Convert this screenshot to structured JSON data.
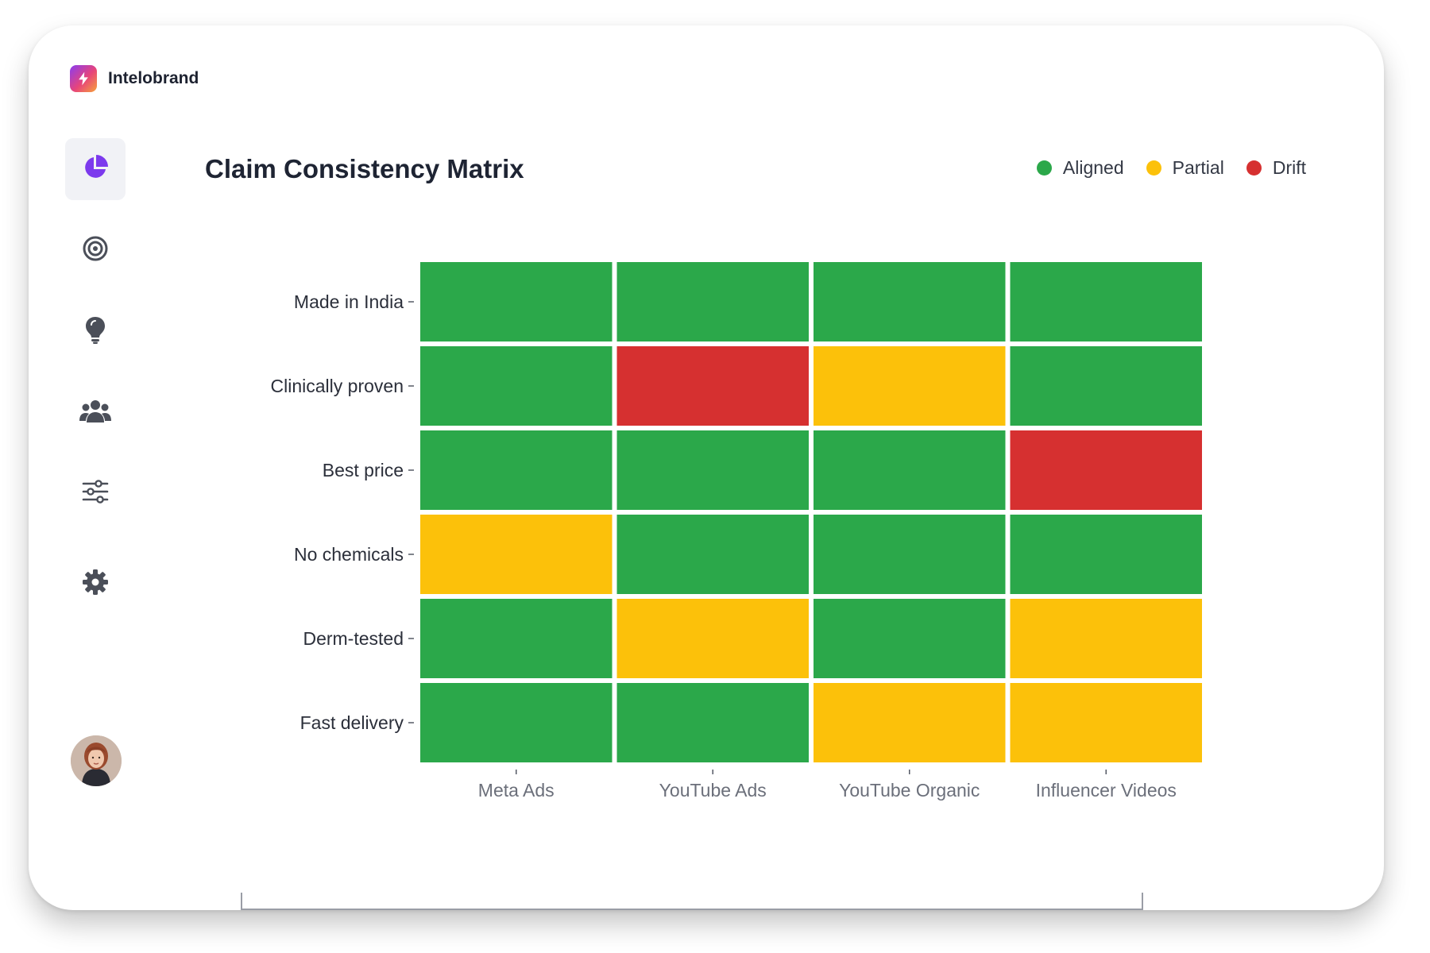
{
  "app": {
    "brand_name": "Intelobrand"
  },
  "sidebar": {
    "items": [
      {
        "icon": "pie-chart-icon",
        "active": true
      },
      {
        "icon": "target-icon",
        "active": false
      },
      {
        "icon": "lightbulb-icon",
        "active": false
      },
      {
        "icon": "users-icon",
        "active": false
      },
      {
        "icon": "sliders-icon",
        "active": false
      },
      {
        "icon": "gear-icon",
        "active": false
      }
    ],
    "avatar_icon": "user-avatar"
  },
  "colors": {
    "accent": "#7c3aed",
    "icon_gray": "#4b4f59",
    "aligned": "#2ba84a",
    "partial": "#fcc10a",
    "drift": "#d63030"
  },
  "chart_data": {
    "type": "heatmap",
    "title": "Claim Consistency Matrix",
    "legend": [
      {
        "label": "Aligned",
        "status": "aligned",
        "color": "#2ba84a"
      },
      {
        "label": "Partial",
        "status": "partial",
        "color": "#fcc10a"
      },
      {
        "label": "Drift",
        "status": "drift",
        "color": "#d63030"
      }
    ],
    "legend_position": "top-right",
    "x_categories": [
      "Meta Ads",
      "YouTube Ads",
      "YouTube Organic",
      "Influencer Videos"
    ],
    "y_categories": [
      "Made in India",
      "Clinically proven",
      "Best price",
      "No chemicals",
      "Derm-tested",
      "Fast delivery"
    ],
    "cells": [
      [
        "aligned",
        "aligned",
        "aligned",
        "aligned"
      ],
      [
        "aligned",
        "drift",
        "partial",
        "aligned"
      ],
      [
        "aligned",
        "aligned",
        "aligned",
        "drift"
      ],
      [
        "partial",
        "aligned",
        "aligned",
        "aligned"
      ],
      [
        "aligned",
        "partial",
        "aligned",
        "partial"
      ],
      [
        "aligned",
        "aligned",
        "partial",
        "partial"
      ]
    ],
    "xlabel": "",
    "ylabel": "",
    "grid": false
  }
}
